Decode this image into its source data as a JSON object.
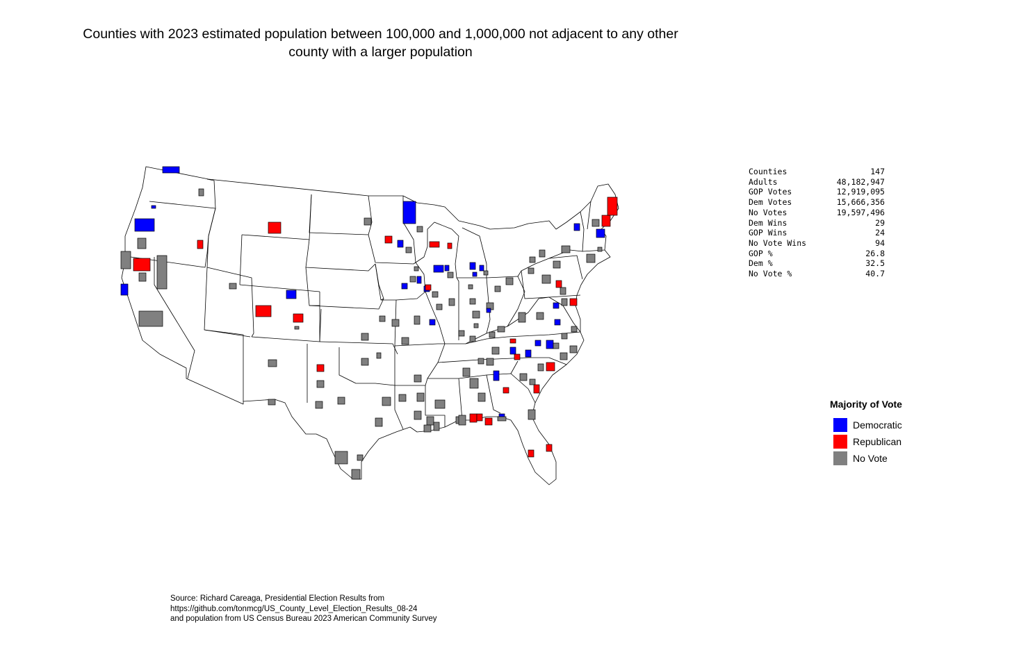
{
  "title": {
    "line1": "Counties with 2023 estimated population between 100,000 and 1,000,000 not adjacent to any other",
    "line2": "county with a larger population"
  },
  "stats": [
    {
      "label": "Counties",
      "value": "147"
    },
    {
      "label": "Adults",
      "value": "48,182,947"
    },
    {
      "label": "GOP Votes",
      "value": "12,919,095"
    },
    {
      "label": "Dem Votes",
      "value": "15,666,356"
    },
    {
      "label": "No Votes",
      "value": "19,597,496"
    },
    {
      "label": "Dem Wins",
      "value": "29"
    },
    {
      "label": "GOP Wins",
      "value": "24"
    },
    {
      "label": "No Vote Wins",
      "value": "94"
    },
    {
      "label": "GOP %",
      "value": "26.8"
    },
    {
      "label": "Dem %",
      "value": "32.5"
    },
    {
      "label": "No Vote %",
      "value": "40.7"
    }
  ],
  "legend": {
    "title": "Majority of Vote",
    "items": [
      {
        "label": "Democratic",
        "color": "#0000ff"
      },
      {
        "label": "Republican",
        "color": "#ff0000"
      },
      {
        "label": "No Vote",
        "color": "#808080"
      }
    ]
  },
  "colors": {
    "dem": "#0000ff",
    "gop": "#ff0000",
    "none": "#808080",
    "land": "#ffffff",
    "border": "#000000"
  },
  "source": {
    "line1": "Source: Richard Careaga, Presidential Election Results from",
    "line2": "https://github.com/tonmcg/US_County_Level_Election_Results_08-24",
    "line3": "and population from US Census Bureau 2023 American Community Survey"
  }
}
